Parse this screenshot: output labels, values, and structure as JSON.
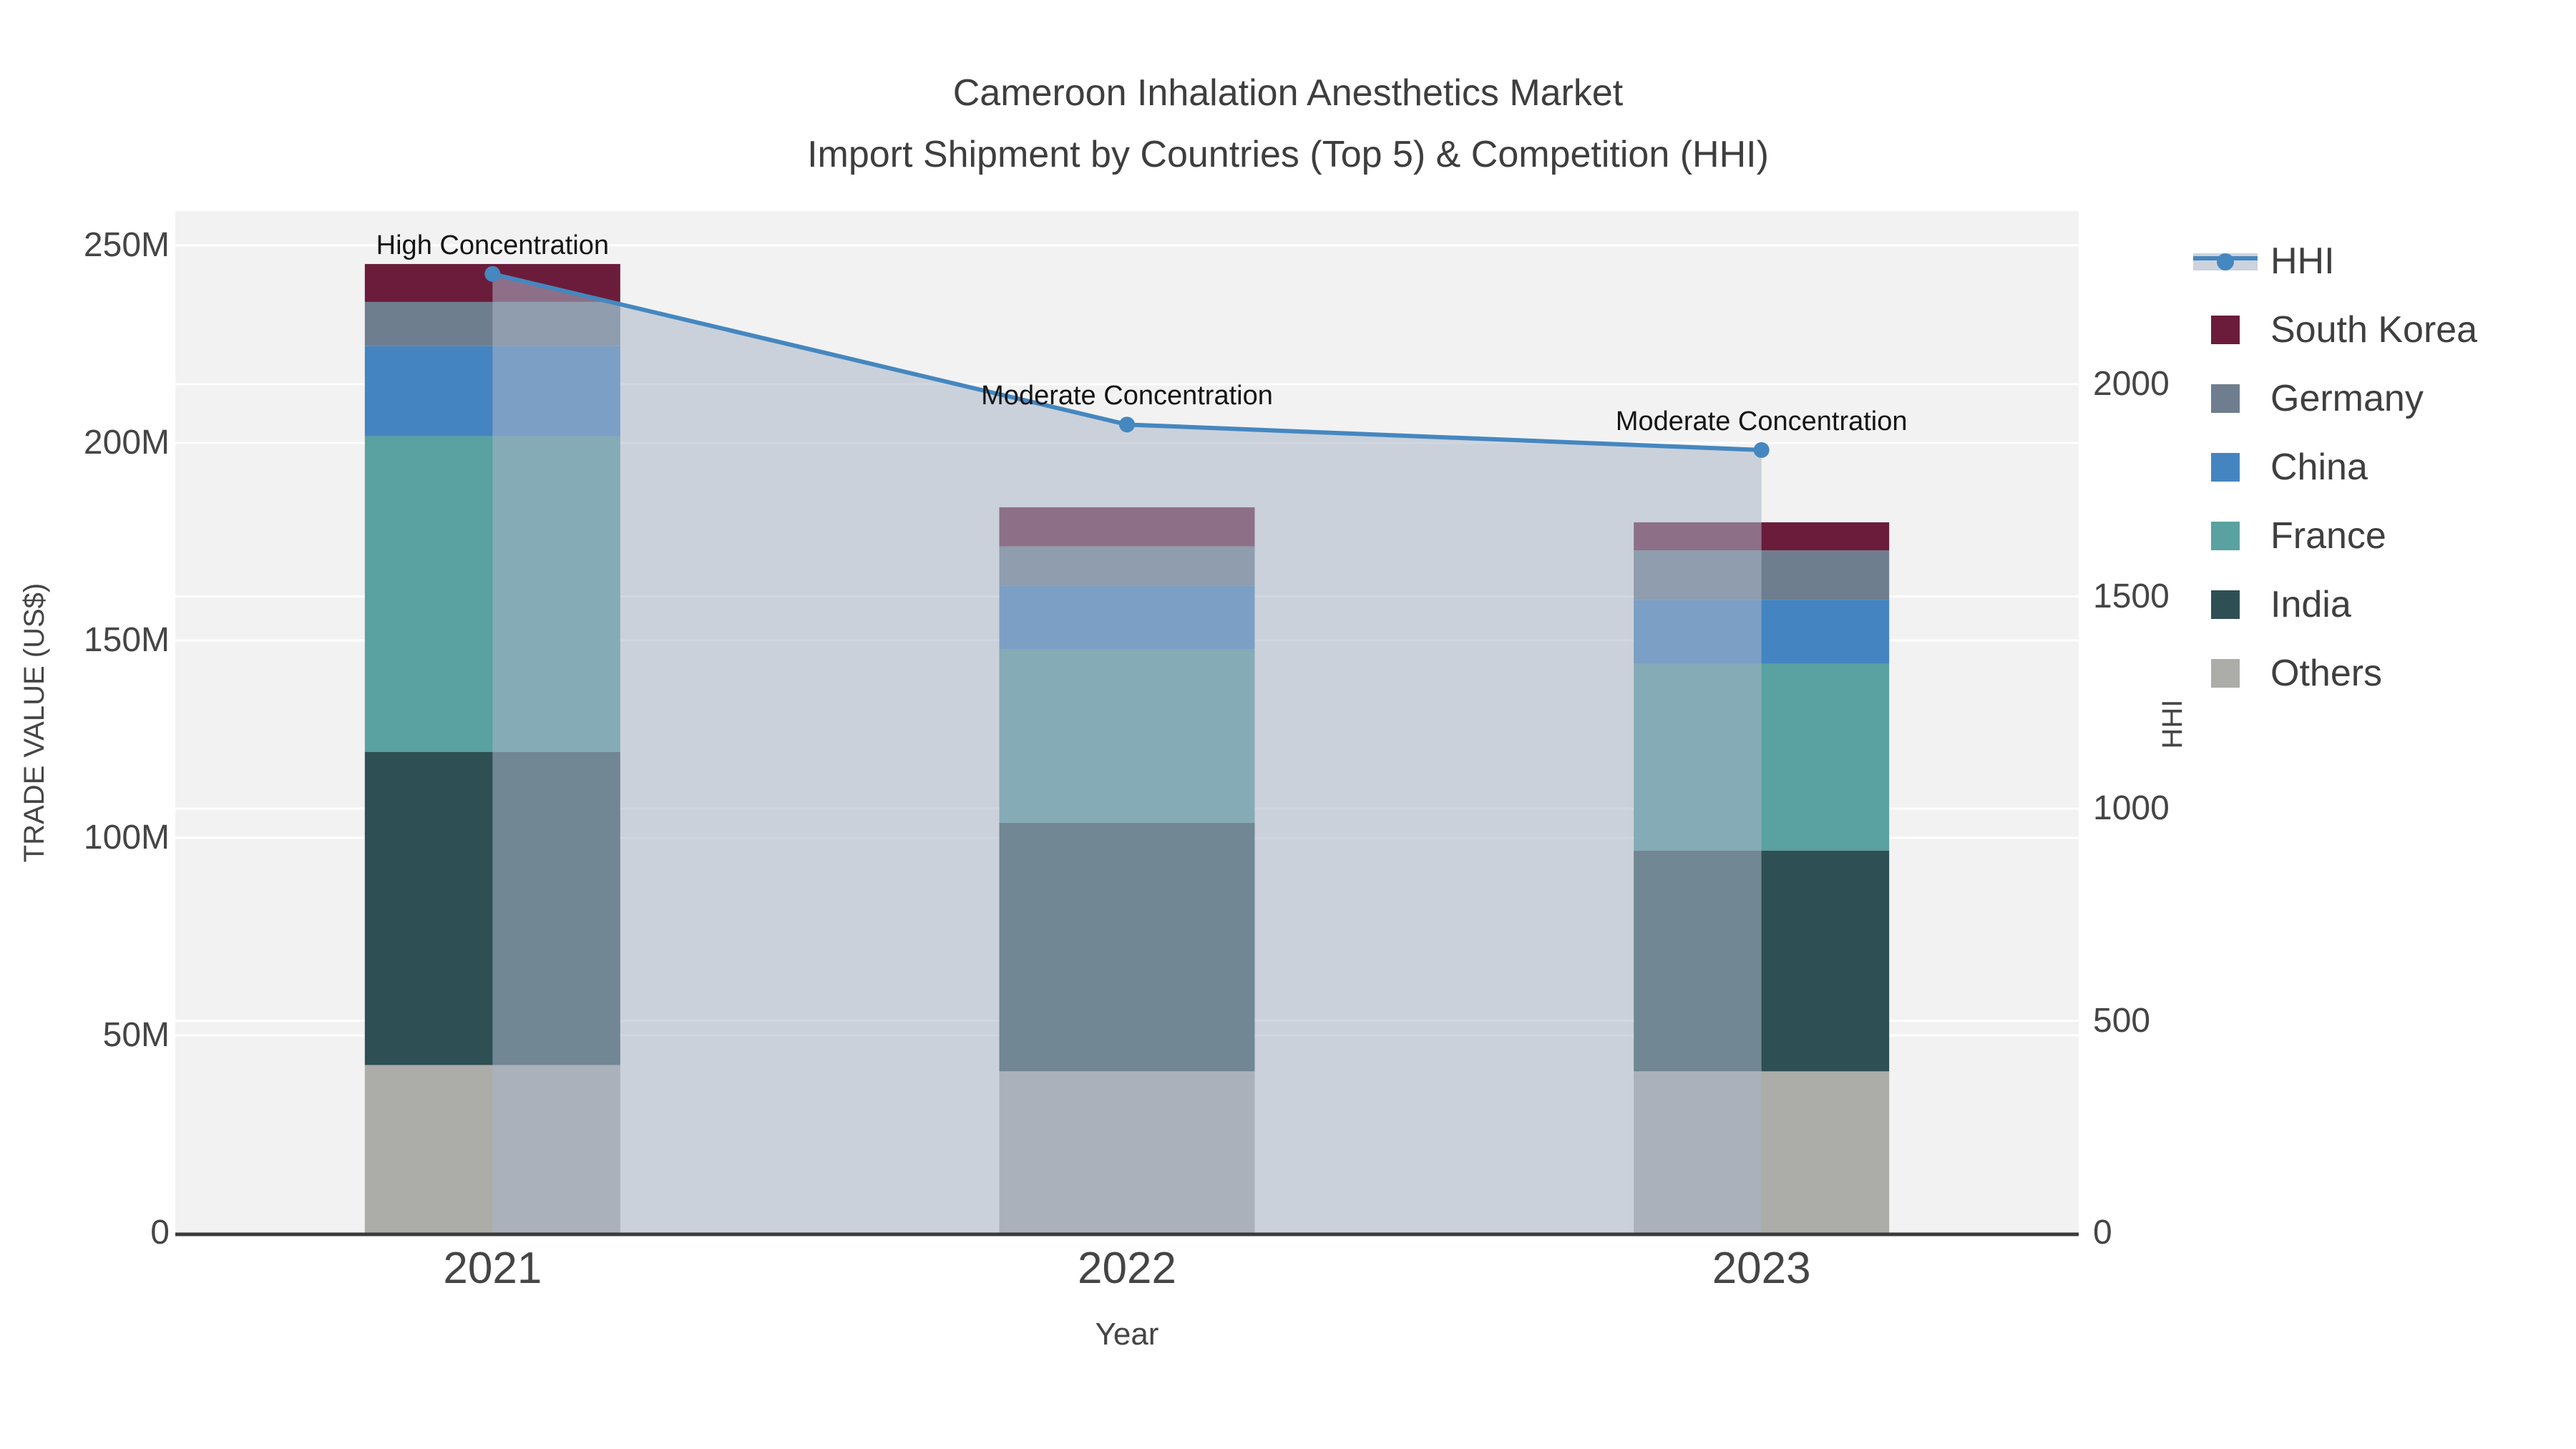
{
  "title": {
    "line1": "Cameroon Inhalation Anesthetics Market",
    "line2": "Import Shipment by Countries (Top 5) & Competition (HHI)"
  },
  "axes": {
    "x": {
      "title": "Year",
      "categories": [
        "2021",
        "2022",
        "2023"
      ]
    },
    "y_left": {
      "title": "TRADE VALUE (US$)",
      "tick_labels": [
        "0",
        "50M",
        "100M",
        "150M",
        "200M",
        "250M"
      ],
      "tick_values": [
        0,
        50,
        100,
        150,
        200,
        250
      ],
      "range_millions": [
        0,
        250
      ]
    },
    "y_right": {
      "title": "HHI",
      "tick_labels": [
        "0",
        "500",
        "1000",
        "1500",
        "2000"
      ],
      "tick_values": [
        0,
        500,
        1000,
        1500,
        2000
      ]
    }
  },
  "chart_data": {
    "type": "bar",
    "subtype": "stacked-bars-with-line-overlay",
    "categories": [
      "2021",
      "2022",
      "2023"
    ],
    "bar_value_unit": "million US$",
    "series": [
      {
        "name": "Others",
        "color": "#acaca9",
        "values": [
          42.5,
          40.9,
          40.9
        ]
      },
      {
        "name": "India",
        "color": "#2e4f53",
        "values": [
          79.3,
          62.9,
          55.9
        ]
      },
      {
        "name": "France",
        "color": "#5aa1a1",
        "values": [
          79.9,
          43.9,
          47.3
        ]
      },
      {
        "name": "China",
        "color": "#4484c0",
        "values": [
          22.8,
          16.1,
          16.2
        ]
      },
      {
        "name": "Germany",
        "color": "#6f7e8e",
        "values": [
          11.2,
          10.0,
          12.5
        ]
      },
      {
        "name": "South Korea",
        "color": "#6b1c3a",
        "values": [
          9.6,
          9.9,
          7.1
        ]
      }
    ],
    "totals_millions": [
      245.3,
      183.7,
      179.9
    ],
    "line": {
      "name": "HHI",
      "color": "#4587bf",
      "values": [
        2260,
        1905,
        1845
      ],
      "axis": "right",
      "fill_to_zero_color": "#a9b7c9",
      "fill_opacity": 0.55
    },
    "annotations": [
      {
        "text": "High Concentration",
        "x": 0,
        "y": 2260
      },
      {
        "text": "Moderate Concentration",
        "x": 1,
        "y": 1905
      },
      {
        "text": "Moderate Concentration",
        "x": 2,
        "y": 1845
      }
    ],
    "ylim_left_millions": [
      0,
      250
    ],
    "ylim_right": [
      0,
      2000
    ],
    "grid": true,
    "plot_bg_color": "#f2f2f2",
    "legend_position": "right"
  },
  "legend": {
    "items": [
      {
        "label": "HHI",
        "type": "line",
        "color": "#4587bf",
        "band_color": "#cdd3dc"
      },
      {
        "label": "South Korea",
        "type": "swatch",
        "color": "#6b1c3a"
      },
      {
        "label": "Germany",
        "type": "swatch",
        "color": "#6f7e8e"
      },
      {
        "label": "China",
        "type": "swatch",
        "color": "#4484c0"
      },
      {
        "label": "France",
        "type": "swatch",
        "color": "#5aa1a1"
      },
      {
        "label": "India",
        "type": "swatch",
        "color": "#2e4f53"
      },
      {
        "label": "Others",
        "type": "swatch",
        "color": "#acaca9"
      }
    ]
  }
}
